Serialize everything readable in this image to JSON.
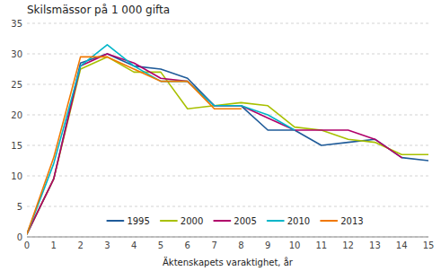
{
  "chart_data": {
    "type": "line",
    "title": "Skilsmässor på 1 000 gifta",
    "x_label": "Äktenskapets varaktighet, år",
    "x": [
      0,
      1,
      2,
      3,
      4,
      5,
      6,
      7,
      8,
      9,
      10,
      11,
      12,
      13,
      14,
      15
    ],
    "series": [
      {
        "name": "1995",
        "color": "#1f5b99",
        "values": [
          0.5,
          9.5,
          28.5,
          30.0,
          28.0,
          27.5,
          26.0,
          21.5,
          21.5,
          17.5,
          17.5,
          15.0,
          15.5,
          16.0,
          13.0,
          12.5
        ]
      },
      {
        "name": "2000",
        "color": "#a8c000",
        "values": [
          0.5,
          9.5,
          27.5,
          29.5,
          27.0,
          27.0,
          21.0,
          21.5,
          22.0,
          21.5,
          18.0,
          17.5,
          16.0,
          15.5,
          13.5,
          13.5
        ]
      },
      {
        "name": "2005",
        "color": "#b0006a",
        "values": [
          0.5,
          9.5,
          28.0,
          30.0,
          28.5,
          26.0,
          25.5,
          21.5,
          21.5,
          19.5,
          17.5,
          17.5,
          17.5,
          16.0,
          13.0,
          null
        ]
      },
      {
        "name": "2010",
        "color": "#00b5c8",
        "values": [
          0.5,
          12.0,
          28.0,
          31.5,
          28.0,
          25.5,
          25.5,
          21.5,
          21.5,
          20.0,
          17.5,
          null,
          null,
          null,
          null,
          null
        ]
      },
      {
        "name": "2013",
        "color": "#f07800",
        "values": [
          0.5,
          13.0,
          29.5,
          29.5,
          27.5,
          25.5,
          25.5,
          21.0,
          21.0,
          null,
          null,
          null,
          null,
          null,
          null,
          null
        ]
      }
    ],
    "xlim": [
      0,
      15
    ],
    "ylim": [
      0,
      35
    ],
    "xticks": [
      0,
      1,
      2,
      3,
      4,
      5,
      6,
      7,
      8,
      9,
      10,
      11,
      12,
      13,
      14,
      15
    ],
    "yticks": [
      0,
      5,
      10,
      15,
      20,
      25,
      30,
      35
    ],
    "grid": true,
    "legend": "lower left"
  }
}
